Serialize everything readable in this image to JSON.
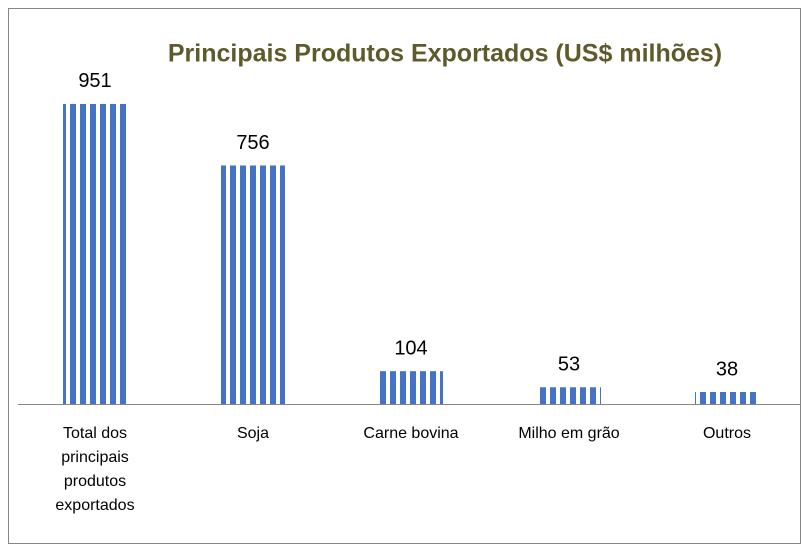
{
  "chart_data": {
    "type": "bar",
    "title": "Principais Produtos Exportados (US$ milhões)",
    "categories": [
      "Total dos principais produtos exportados",
      "Soja",
      "Carne bovina",
      "Milho em grão",
      "Outros"
    ],
    "values": [
      951,
      756,
      104,
      53,
      38
    ],
    "color": "#4472c4",
    "pattern": "vertical-stripes",
    "ylim": [
      0,
      1000
    ]
  }
}
